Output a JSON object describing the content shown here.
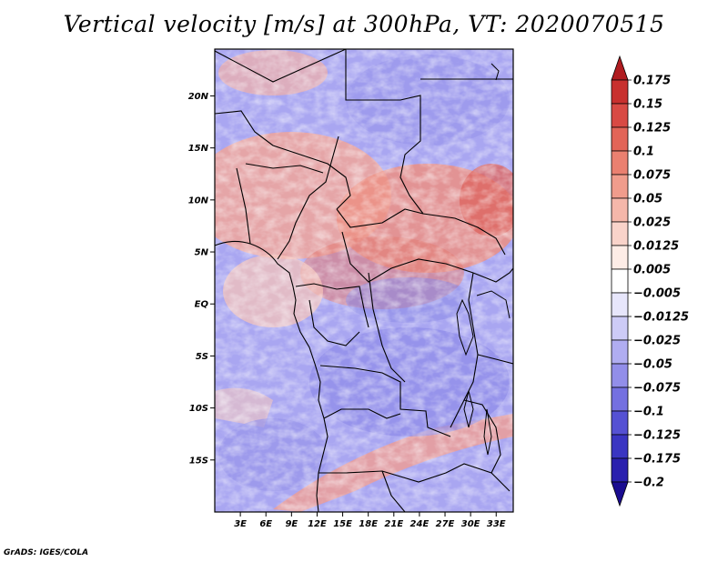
{
  "title": "Vertical velocity [m/s] at 300hPa, VT: 2020070515",
  "credit": "GrADS: IGES/COLA",
  "map": {
    "lon_range": [
      0,
      35
    ],
    "lat_range": [
      -20,
      24.5
    ],
    "field": "vertical velocity",
    "level": "300hPa",
    "units": "m/s",
    "lat_ticks": [
      "20N",
      "15N",
      "10N",
      "5N",
      "EQ",
      "5S",
      "10S",
      "15S"
    ],
    "lat_values": [
      20,
      15,
      10,
      5,
      0,
      -5,
      -10,
      -15
    ],
    "lon_ticks": [
      "3E",
      "6E",
      "9E",
      "12E",
      "15E",
      "18E",
      "21E",
      "24E",
      "27E",
      "30E",
      "33E"
    ],
    "lon_values": [
      3,
      6,
      9,
      12,
      15,
      18,
      21,
      24,
      27,
      30,
      33
    ]
  },
  "colorbar": {
    "labels": [
      "0.175",
      "0.15",
      "0.125",
      "0.1",
      "0.075",
      "0.05",
      "0.025",
      "0.0125",
      "0.005",
      "-0.005",
      "-0.0125",
      "-0.025",
      "-0.05",
      "-0.075",
      "-0.1",
      "-0.125",
      "-0.175",
      "-0.2"
    ],
    "colors": [
      "#b01c20",
      "#c8302e",
      "#d84a44",
      "#e26558",
      "#ea8070",
      "#f09c8c",
      "#f5b7aa",
      "#f9d3ca",
      "#fdece6",
      "#ffffff",
      "#e7e6fb",
      "#cdcbf6",
      "#b0adf1",
      "#928ee9",
      "#7470e0",
      "#5551d3",
      "#3a35c2",
      "#2a20ae",
      "#1a0c90"
    ]
  }
}
